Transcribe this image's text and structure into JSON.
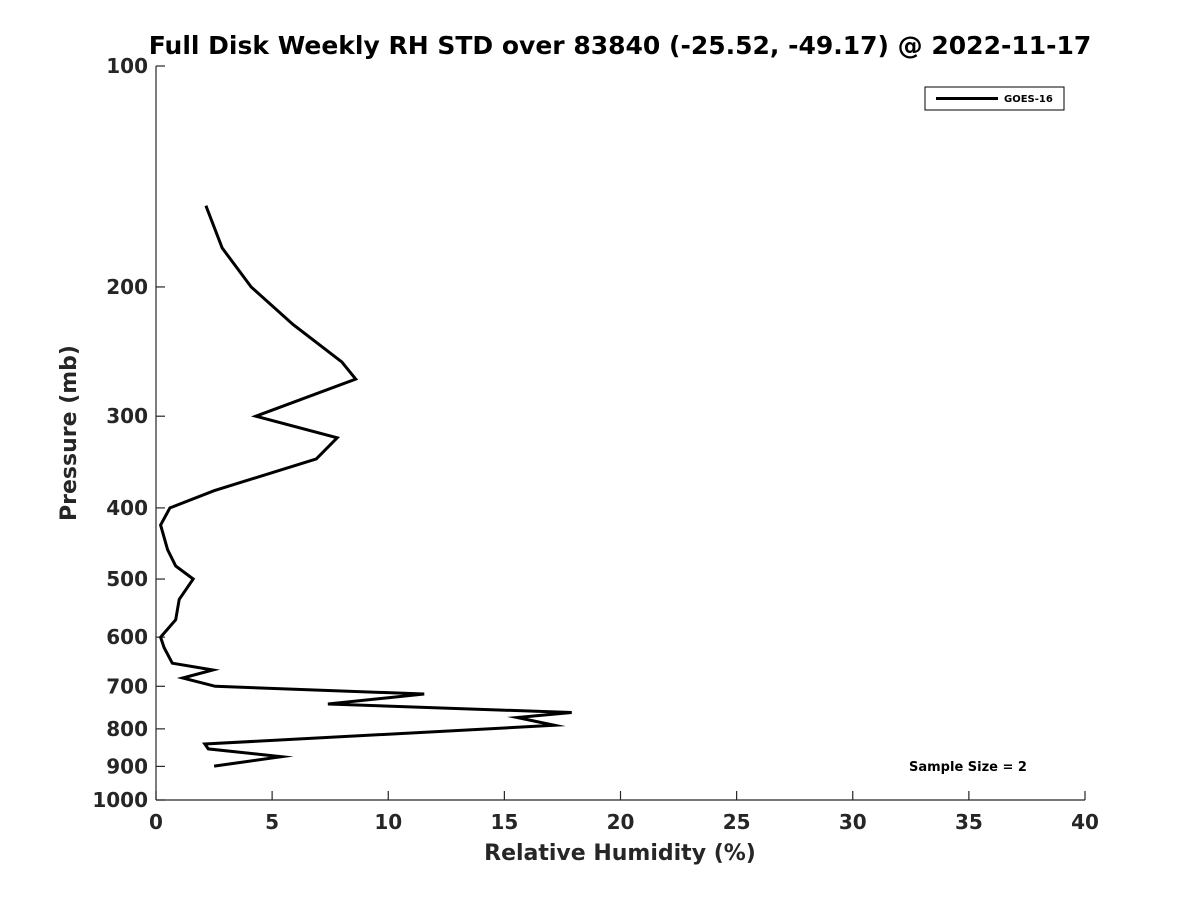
{
  "chart_data": {
    "type": "line",
    "title": "Full Disk Weekly RH STD over 83840 (-25.52, -49.17) @ 2022-11-17",
    "xlabel": "Relative Humidity (%)",
    "ylabel": "Pressure (mb)",
    "xlim": [
      0,
      40
    ],
    "ylim": [
      100,
      1000
    ],
    "yscale": "log",
    "y_reversed": true,
    "grid": false,
    "x_ticks": [
      0,
      5,
      10,
      15,
      20,
      25,
      30,
      35,
      40
    ],
    "y_ticks": [
      100,
      200,
      300,
      400,
      500,
      600,
      700,
      800,
      900,
      1000
    ],
    "legend": {
      "position": "top-right",
      "entries": [
        "GOES-16"
      ]
    },
    "annotation": "Sample Size = 2",
    "series": [
      {
        "name": "GOES-16",
        "color": "#000000",
        "x": [
          2.15,
          2.85,
          4.1,
          5.9,
          8.0,
          8.6,
          4.3,
          7.8,
          6.9,
          2.5,
          0.6,
          0.2,
          0.5,
          0.85,
          1.6,
          1.0,
          0.85,
          0.2,
          0.35,
          0.7,
          2.45,
          1.15,
          2.55,
          11.55,
          7.4,
          17.9,
          15.55,
          17.15,
          2.1,
          2.25,
          5.4,
          2.5
        ],
        "y": [
          155,
          177,
          200,
          225,
          253,
          267,
          300,
          321,
          343,
          379,
          400,
          422,
          456,
          480,
          500,
          533,
          568,
          600,
          620,
          651,
          665,
          682,
          700,
          717,
          740,
          760,
          772,
          791,
          839,
          852,
          873,
          899
        ]
      }
    ]
  }
}
